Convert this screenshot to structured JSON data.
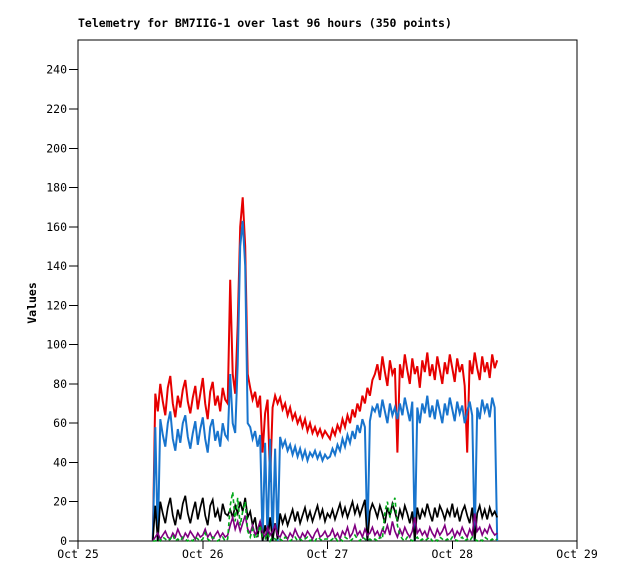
{
  "title": "Telemetry for BM7IIG-1 over last 96 hours (350 points)",
  "y_axis_label": "Values",
  "colors": {
    "background": "#ffffff",
    "frame": "#000000",
    "series_red": "#e60000",
    "series_blue": "#1874cd",
    "series_black": "#000000",
    "series_green": "#00a818",
    "series_purple": "#800080"
  },
  "chart_data": {
    "type": "line",
    "title": "Telemetry for BM7IIG-1 over last 96 hours (350 points)",
    "xlabel": "",
    "ylabel": "Values",
    "grid": "off",
    "legend": "none",
    "ylim": [
      0,
      255
    ],
    "y_ticks": [
      0,
      20,
      40,
      60,
      80,
      100,
      120,
      140,
      160,
      180,
      200,
      220,
      240
    ],
    "x_ticks": [
      {
        "t": 0,
        "label": "Oct 25"
      },
      {
        "t": 1,
        "label": "Oct 26"
      },
      {
        "t": 2,
        "label": "Oct 27"
      },
      {
        "t": 3,
        "label": "Oct 28"
      },
      {
        "t": 4,
        "label": "Oct 29"
      }
    ],
    "x_unit": "days after Oct 25",
    "t0": 0.6,
    "dt": 0.02,
    "series": [
      {
        "name": "series-red",
        "color": "#e60000",
        "width": 2,
        "values": [
          0,
          75,
          66,
          80,
          71,
          64,
          78,
          84,
          70,
          63,
          74,
          68,
          77,
          82,
          71,
          65,
          73,
          79,
          67,
          75,
          83,
          70,
          62,
          76,
          81,
          69,
          74,
          66,
          78,
          72,
          70,
          133,
          85,
          75,
          110,
          160,
          175,
          150,
          85,
          78,
          72,
          76,
          68,
          74,
          45,
          65,
          72,
          30,
          68,
          74,
          70,
          73,
          67,
          70,
          64,
          68,
          62,
          65,
          60,
          63,
          58,
          62,
          56,
          60,
          55,
          58,
          54,
          57,
          53,
          56,
          54,
          52,
          57,
          54,
          59,
          56,
          62,
          58,
          64,
          60,
          67,
          63,
          70,
          66,
          74,
          70,
          78,
          74,
          82,
          85,
          90,
          82,
          94,
          86,
          79,
          92,
          85,
          88,
          45,
          90,
          83,
          95,
          87,
          80,
          93,
          85,
          89,
          78,
          92,
          86,
          96,
          84,
          90,
          82,
          94,
          87,
          80,
          91,
          85,
          95,
          88,
          81,
          93,
          86,
          90,
          79,
          45,
          92,
          85,
          96,
          88,
          82,
          94,
          86,
          91,
          83,
          95,
          88,
          92
        ]
      },
      {
        "name": "series-blue",
        "color": "#1874cd",
        "width": 2,
        "values": [
          0,
          58,
          0,
          62,
          54,
          48,
          60,
          66,
          52,
          46,
          57,
          50,
          60,
          64,
          53,
          47,
          55,
          61,
          49,
          57,
          63,
          52,
          45,
          58,
          62,
          51,
          56,
          48,
          60,
          54,
          52,
          85,
          60,
          55,
          90,
          150,
          163,
          140,
          60,
          58,
          52,
          56,
          48,
          54,
          0,
          50,
          0,
          52,
          0,
          47,
          0,
          53,
          48,
          51,
          46,
          49,
          44,
          48,
          43,
          47,
          42,
          46,
          41,
          45,
          43,
          46,
          42,
          45,
          41,
          44,
          42,
          43,
          47,
          44,
          49,
          46,
          52,
          48,
          54,
          50,
          56,
          52,
          59,
          55,
          62,
          58,
          0,
          61,
          68,
          66,
          70,
          63,
          72,
          66,
          60,
          70,
          64,
          68,
          62,
          70,
          64,
          73,
          67,
          61,
          71,
          0,
          68,
          60,
          70,
          65,
          74,
          63,
          69,
          62,
          72,
          66,
          60,
          70,
          64,
          73,
          67,
          61,
          71,
          65,
          69,
          60,
          66,
          71,
          64,
          0,
          68,
          62,
          72,
          66,
          70,
          63,
          73,
          68,
          0
        ]
      },
      {
        "name": "series-black",
        "color": "#000000",
        "width": 1.7,
        "values": [
          0,
          18,
          0,
          20,
          14,
          9,
          17,
          22,
          13,
          8,
          16,
          11,
          19,
          23,
          14,
          9,
          15,
          20,
          11,
          17,
          22,
          13,
          8,
          18,
          21,
          12,
          16,
          10,
          19,
          14,
          13,
          16,
          12,
          18,
          14,
          20,
          15,
          22,
          12,
          15,
          8,
          12,
          2,
          10,
          0,
          8,
          0,
          12,
          0,
          9,
          1,
          14,
          9,
          13,
          8,
          12,
          16,
          10,
          15,
          9,
          13,
          17,
          11,
          15,
          10,
          14,
          18,
          12,
          16,
          10,
          14,
          12,
          16,
          11,
          15,
          19,
          13,
          17,
          12,
          16,
          20,
          14,
          18,
          13,
          17,
          21,
          0,
          15,
          19,
          16,
          12,
          18,
          14,
          9,
          17,
          13,
          19,
          15,
          10,
          16,
          12,
          18,
          14,
          9,
          15,
          0,
          17,
          11,
          16,
          13,
          19,
          14,
          10,
          17,
          12,
          18,
          15,
          11,
          16,
          13,
          19,
          12,
          16,
          10,
          15,
          18,
          13,
          9,
          17,
          0,
          14,
          18,
          12,
          16,
          11,
          17,
          13,
          15,
          12
        ]
      },
      {
        "name": "series-purple",
        "color": "#800080",
        "width": 1.6,
        "values": [
          0,
          2,
          4,
          1,
          3,
          5,
          2,
          1,
          4,
          2,
          6,
          3,
          1,
          4,
          2,
          5,
          3,
          1,
          4,
          2,
          3,
          6,
          2,
          4,
          1,
          3,
          5,
          2,
          4,
          2,
          3,
          8,
          12,
          6,
          10,
          5,
          9,
          13,
          6,
          4,
          8,
          3,
          6,
          10,
          4,
          2,
          7,
          3,
          5,
          8,
          3,
          2,
          5,
          3,
          1,
          4,
          2,
          6,
          3,
          1,
          4,
          2,
          5,
          3,
          1,
          4,
          6,
          2,
          3,
          5,
          2,
          3,
          6,
          2,
          4,
          1,
          5,
          3,
          7,
          2,
          4,
          8,
          3,
          5,
          2,
          6,
          3,
          4,
          7,
          3,
          5,
          2,
          6,
          4,
          8,
          3,
          10,
          5,
          2,
          6,
          3,
          7,
          4,
          2,
          5,
          12,
          4,
          6,
          3,
          5,
          2,
          7,
          4,
          2,
          6,
          3,
          5,
          8,
          3,
          4,
          6,
          2,
          5,
          3,
          7,
          4,
          2,
          6,
          3,
          14,
          5,
          7,
          3,
          6,
          4,
          8,
          5,
          3,
          4
        ]
      },
      {
        "name": "series-green",
        "color": "#00a818",
        "width": 1.6,
        "dash": "4 3",
        "values": [
          0,
          0,
          1,
          0,
          2,
          1,
          0,
          1,
          3,
          0,
          1,
          0,
          2,
          1,
          0,
          1,
          0,
          2,
          1,
          0,
          1,
          4,
          1,
          0,
          2,
          1,
          0,
          1,
          2,
          0,
          1,
          18,
          25,
          10,
          22,
          8,
          15,
          20,
          5,
          2,
          6,
          1,
          3,
          8,
          2,
          1,
          4,
          0,
          2,
          1,
          0,
          1,
          0,
          2,
          1,
          0,
          1,
          2,
          0,
          1,
          0,
          1,
          2,
          0,
          1,
          0,
          2,
          1,
          0,
          1,
          1,
          0,
          1,
          2,
          0,
          1,
          0,
          2,
          1,
          0,
          1,
          3,
          1,
          0,
          2,
          1,
          0,
          1,
          0,
          1,
          0,
          2,
          1,
          15,
          20,
          12,
          18,
          22,
          8,
          3,
          1,
          0,
          2,
          1,
          0,
          1,
          2,
          0,
          1,
          0,
          1,
          2,
          0,
          1,
          0,
          2,
          1,
          0,
          1,
          0,
          2,
          1,
          0,
          1,
          2,
          0,
          1,
          0,
          2,
          1,
          0,
          1,
          0,
          2,
          1,
          0,
          1,
          0,
          1
        ]
      }
    ]
  }
}
